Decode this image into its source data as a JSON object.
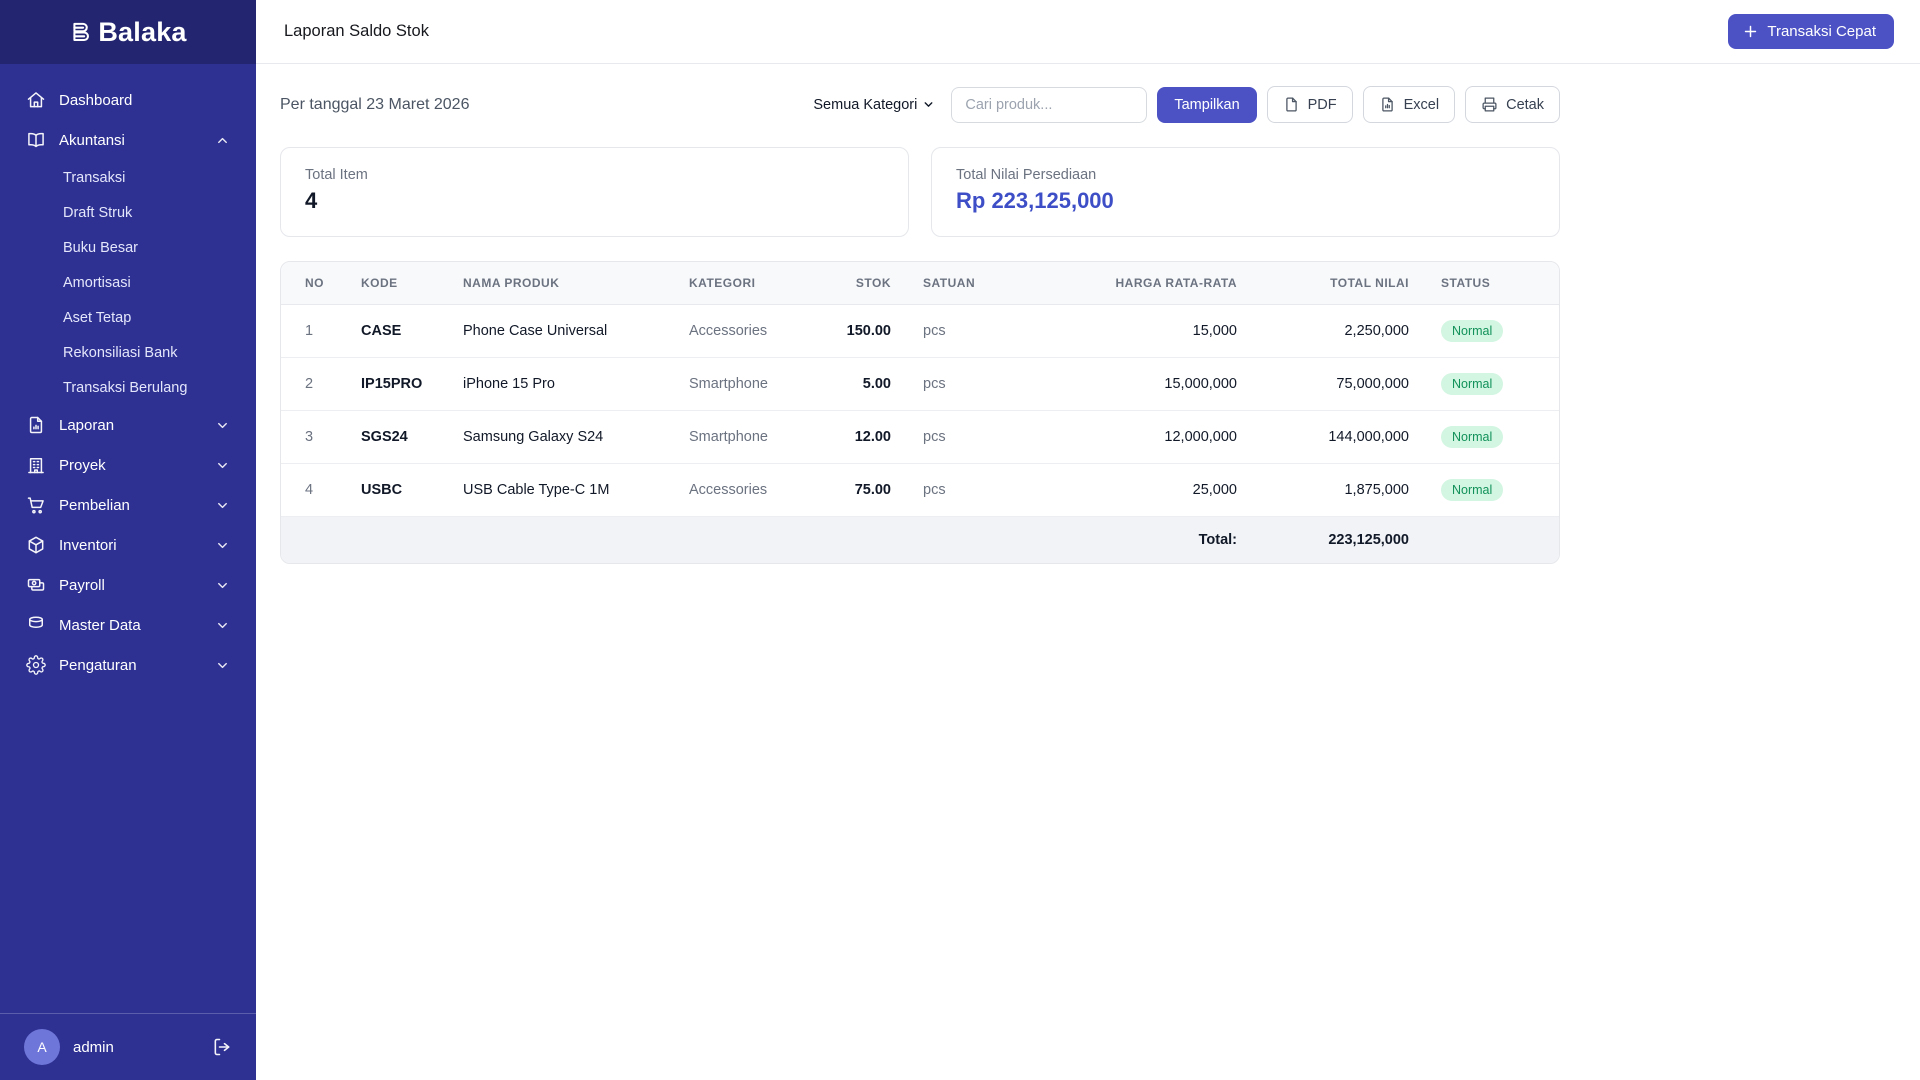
{
  "brand": {
    "name": "Balaka"
  },
  "colors": {
    "sidebar_bg": "#2e3192",
    "sidebar_top_bg": "#232571",
    "accent": "#4c52c4",
    "accent_text": "#3d4ec6",
    "badge_bg": "#d3f6e2",
    "badge_text": "#12915a",
    "avatar_bg": "#6f76d9"
  },
  "sidebar": {
    "items": [
      {
        "label": "Dashboard",
        "icon": "home-icon",
        "type": "link"
      },
      {
        "label": "Akuntansi",
        "icon": "book-open-icon",
        "type": "group",
        "state": "expanded",
        "children": [
          "Transaksi",
          "Draft Struk",
          "Buku Besar",
          "Amortisasi",
          "Aset Tetap",
          "Rekonsiliasi Bank",
          "Transaksi Berulang"
        ]
      },
      {
        "label": "Laporan",
        "icon": "file-chart-icon",
        "type": "group",
        "state": "collapsed"
      },
      {
        "label": "Proyek",
        "icon": "building-icon",
        "type": "group",
        "state": "collapsed"
      },
      {
        "label": "Pembelian",
        "icon": "cart-icon",
        "type": "group",
        "state": "collapsed"
      },
      {
        "label": "Inventori",
        "icon": "cube-icon",
        "type": "group",
        "state": "collapsed"
      },
      {
        "label": "Payroll",
        "icon": "banknotes-icon",
        "type": "group",
        "state": "collapsed"
      },
      {
        "label": "Master Data",
        "icon": "database-icon",
        "type": "group",
        "state": "collapsed"
      },
      {
        "label": "Pengaturan",
        "icon": "gear-icon",
        "type": "group",
        "state": "collapsed"
      }
    ],
    "user": {
      "initial": "A",
      "name": "admin"
    }
  },
  "header": {
    "title": "Laporan Saldo Stok",
    "quick_action": "Transaksi Cepat"
  },
  "filters": {
    "date_label": "Per tanggal 23 Maret 2026",
    "category_selected": "Semua Kategori",
    "search_placeholder": "Cari produk...",
    "show_button": "Tampilkan",
    "export_buttons": [
      {
        "label": "PDF",
        "icon": "file-icon"
      },
      {
        "label": "Excel",
        "icon": "file-chart-small-icon"
      },
      {
        "label": "Cetak",
        "icon": "printer-icon"
      }
    ]
  },
  "summary": {
    "cards": [
      {
        "label": "Total Item",
        "value": "4",
        "style": "dark"
      },
      {
        "label": "Total Nilai Persediaan",
        "value": "Rp 223,125,000",
        "style": "indigo"
      }
    ]
  },
  "table": {
    "columns": [
      "NO",
      "KODE",
      "NAMA PRODUK",
      "KATEGORI",
      "STOK",
      "SATUAN",
      "HARGA RATA-RATA",
      "TOTAL NILAI",
      "STATUS"
    ],
    "rows": [
      {
        "no": "1",
        "kode": "CASE",
        "nama": "Phone Case Universal",
        "kategori": "Accessories",
        "stok": "150.00",
        "satuan": "pcs",
        "harga": "15,000",
        "total": "2,250,000",
        "status": "Normal"
      },
      {
        "no": "2",
        "kode": "IP15PRO",
        "nama": "iPhone 15 Pro",
        "kategori": "Smartphone",
        "stok": "5.00",
        "satuan": "pcs",
        "harga": "15,000,000",
        "total": "75,000,000",
        "status": "Normal"
      },
      {
        "no": "3",
        "kode": "SGS24",
        "nama": "Samsung Galaxy S24",
        "kategori": "Smartphone",
        "stok": "12.00",
        "satuan": "pcs",
        "harga": "12,000,000",
        "total": "144,000,000",
        "status": "Normal"
      },
      {
        "no": "4",
        "kode": "USBC",
        "nama": "USB Cable Type-C 1M",
        "kategori": "Accessories",
        "stok": "75.00",
        "satuan": "pcs",
        "harga": "25,000",
        "total": "1,875,000",
        "status": "Normal"
      }
    ],
    "footer": {
      "label": "Total:",
      "value": "223,125,000"
    }
  }
}
